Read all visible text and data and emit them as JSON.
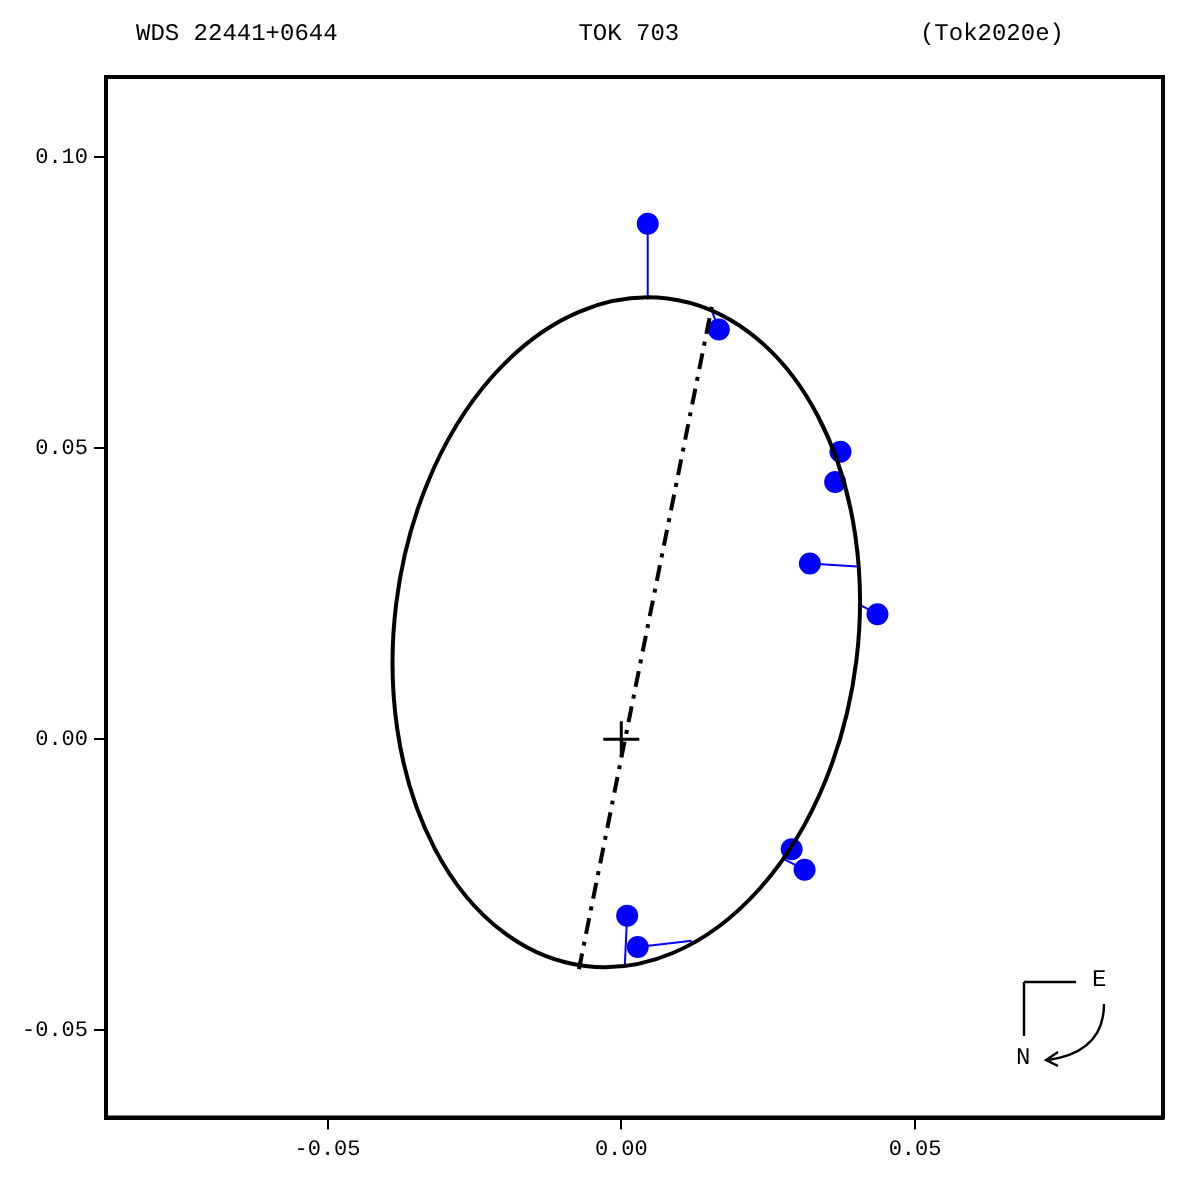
{
  "chart_data": {
    "type": "scatter",
    "title": "WDS 22441+0644",
    "subtitle": "TOK 703",
    "annotations": [
      "(Tok2020e)",
      "E",
      "N"
    ],
    "xlim": [
      -0.0877,
      0.0922
    ],
    "ylim": [
      -0.065,
      0.1138
    ],
    "xticks": [
      {
        "value": -0.05,
        "label": "-0.05"
      },
      {
        "value": 0,
        "label": "0.00"
      },
      {
        "value": 0.05,
        "label": "0.05"
      }
    ],
    "yticks": [
      {
        "value": -0.05,
        "label": "-0.05"
      },
      {
        "value": 0,
        "label": "0.00"
      },
      {
        "value": 0.05,
        "label": "0.05"
      },
      {
        "value": 0.1,
        "label": "0.10"
      }
    ],
    "grid": false,
    "legend": false,
    "series": [
      {
        "type": "line",
        "color": "#000000",
        "marker": "none",
        "line_style": "dashed",
        "x": [
          -0.0072,
          0.0154
        ],
        "values": [
          -0.0395,
          0.0743
        ]
      },
      {
        "type": "line",
        "color": "#0000ff",
        "marker": "none",
        "x": [
          0.0045,
          0.0045
        ],
        "values": [
          0.0886,
          0.0757
        ]
      },
      {
        "type": "line",
        "color": "#0000ff",
        "marker": "none",
        "x": [
          0.0166,
          0.0154
        ],
        "values": [
          0.0704,
          0.0737
        ]
      },
      {
        "type": "line",
        "color": "#0000ff",
        "marker": "none",
        "x": [
          0.0321,
          0.0401
        ],
        "values": [
          0.0302,
          0.0297
        ]
      },
      {
        "type": "line",
        "color": "#0000ff",
        "marker": "none",
        "x": [
          0.0436,
          0.0406
        ],
        "values": [
          0.0215,
          0.0231
        ]
      },
      {
        "type": "line",
        "color": "#0000ff",
        "marker": "none",
        "x": [
          0.0312,
          0.0275
        ],
        "values": [
          -0.0224,
          -0.0205
        ]
      },
      {
        "type": "line",
        "color": "#0000ff",
        "marker": "none",
        "x": [
          0.001,
          0.0006
        ],
        "values": [
          -0.0303,
          -0.0388
        ]
      },
      {
        "type": "line",
        "color": "#0000ff",
        "marker": "none",
        "x": [
          0.0028,
          0.012
        ],
        "values": [
          -0.0357,
          -0.0346
        ]
      },
      {
        "type": "scatter",
        "color": "#0000ff",
        "marker": "circle",
        "x": [
          0.0045,
          0.0166,
          0.0373,
          0.0364,
          0.0321,
          0.0436,
          0.029,
          0.0312,
          0.001,
          0.0028
        ],
        "values": [
          0.0886,
          0.0704,
          0.0494,
          0.0442,
          0.0302,
          0.0215,
          -0.0189,
          -0.0224,
          -0.0303,
          -0.0357
        ]
      },
      {
        "type": "scatter",
        "color": "#000000",
        "marker": "cross",
        "x": [
          0
        ],
        "values": [
          0
        ]
      }
    ]
  }
}
